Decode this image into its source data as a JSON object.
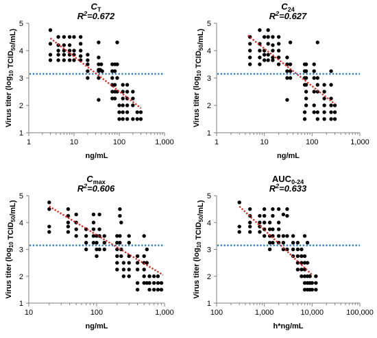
{
  "colors": {
    "point": "#000000",
    "fit": "#e8201c",
    "threshold": "#2b7fc1",
    "axis": "#7f7f7f"
  },
  "chart_data": [
    {
      "type": "scatter",
      "title_main": "C",
      "title_sub": "T",
      "title_sub_mode": "sub",
      "r2_label": "R",
      "r2_sup": "2",
      "r2_value": "=0.672",
      "xlabel": "ng/mL",
      "ylabel": "Virus titer (log10 TCID50/mL)",
      "x_scale": "log",
      "xlim": [
        1,
        1000
      ],
      "x_ticks": [
        1,
        10,
        100,
        1000
      ],
      "x_tick_labels": [
        "1",
        "10",
        "100",
        "1,000"
      ],
      "ylim": [
        1,
        5
      ],
      "y_ticks": [
        1,
        2,
        3,
        4,
        5
      ],
      "y_tick_labels": [
        "1",
        "2",
        "3",
        "4",
        "5"
      ],
      "threshold_y": 3.15,
      "fit_line": {
        "x": [
          3,
          300
        ],
        "y": [
          4.45,
          1.9
        ]
      },
      "points": [
        [
          3,
          4.75
        ],
        [
          3,
          4.25
        ],
        [
          3,
          3.85
        ],
        [
          3,
          3.65
        ],
        [
          4.5,
          4.5
        ],
        [
          4.5,
          4.2
        ],
        [
          4.5,
          4.0
        ],
        [
          4.5,
          3.85
        ],
        [
          4.5,
          3.65
        ],
        [
          6,
          4.5
        ],
        [
          6,
          4.2
        ],
        [
          6,
          4.0
        ],
        [
          6,
          3.85
        ],
        [
          6,
          3.65
        ],
        [
          8,
          4.5
        ],
        [
          8,
          4.2
        ],
        [
          8,
          4.0
        ],
        [
          8,
          3.85
        ],
        [
          8,
          3.65
        ],
        [
          10,
          4.5
        ],
        [
          10,
          4.0
        ],
        [
          10,
          3.85
        ],
        [
          10,
          3.65
        ],
        [
          14,
          4.5
        ],
        [
          14,
          4.25
        ],
        [
          14,
          4.0
        ],
        [
          14,
          3.8
        ],
        [
          14,
          3.65
        ],
        [
          20,
          3.85
        ],
        [
          20,
          3.65
        ],
        [
          20,
          3.5
        ],
        [
          20,
          3.25
        ],
        [
          20,
          3.0
        ],
        [
          35,
          4.3
        ],
        [
          35,
          3.75
        ],
        [
          35,
          3.5
        ],
        [
          35,
          3.3
        ],
        [
          35,
          3.25
        ],
        [
          35,
          3.0
        ],
        [
          35,
          2.2
        ],
        [
          38,
          3.3
        ],
        [
          40,
          3.5
        ],
        [
          42,
          3.25
        ],
        [
          70,
          3.5
        ],
        [
          70,
          3.25
        ],
        [
          70,
          3.0
        ],
        [
          70,
          2.75
        ],
        [
          70,
          2.5
        ],
        [
          70,
          2.25
        ],
        [
          80,
          3.5
        ],
        [
          80,
          3.25
        ],
        [
          80,
          2.75
        ],
        [
          80,
          2.5
        ],
        [
          80,
          2.25
        ],
        [
          90,
          4.3
        ],
        [
          90,
          3.5
        ],
        [
          90,
          3.0
        ],
        [
          90,
          2.5
        ],
        [
          100,
          2.0
        ],
        [
          100,
          1.75
        ],
        [
          100,
          1.5
        ],
        [
          120,
          2.75
        ],
        [
          120,
          2.5
        ],
        [
          120,
          2.25
        ],
        [
          120,
          2.0
        ],
        [
          120,
          1.75
        ],
        [
          120,
          1.5
        ],
        [
          150,
          2.75
        ],
        [
          150,
          2.5
        ],
        [
          150,
          2.25
        ],
        [
          150,
          2.0
        ],
        [
          150,
          1.75
        ],
        [
          150,
          1.5
        ],
        [
          200,
          2.5
        ],
        [
          200,
          2.25
        ],
        [
          200,
          2.0
        ],
        [
          200,
          1.5
        ],
        [
          250,
          1.75
        ],
        [
          250,
          1.5
        ],
        [
          300,
          1.75
        ],
        [
          300,
          1.5
        ]
      ]
    },
    {
      "type": "scatter",
      "title_main": "C",
      "title_sub": "24",
      "title_sub_mode": "sub",
      "r2_label": "R",
      "r2_sup": "2",
      "r2_value": "=0.627",
      "xlabel": "ng/mL",
      "ylabel": "Virus titer (log10 TCID50/mL)",
      "x_scale": "log",
      "xlim": [
        1,
        1000
      ],
      "x_ticks": [
        1,
        10,
        100,
        1000
      ],
      "x_tick_labels": [
        "1",
        "10",
        "100",
        "1,000"
      ],
      "ylim": [
        1,
        5
      ],
      "y_ticks": [
        1,
        2,
        3,
        4,
        5
      ],
      "y_tick_labels": [
        "1",
        "2",
        "3",
        "4",
        "5"
      ],
      "threshold_y": 3.15,
      "fit_line": {
        "x": [
          4.5,
          300
        ],
        "y": [
          4.55,
          2.05
        ]
      },
      "points": [
        [
          5,
          4.5
        ],
        [
          5,
          4.25
        ],
        [
          5,
          4.0
        ],
        [
          5,
          3.75
        ],
        [
          5,
          3.5
        ],
        [
          8,
          4.75
        ],
        [
          8,
          4.25
        ],
        [
          8,
          4.0
        ],
        [
          8,
          3.75
        ],
        [
          8,
          3.5
        ],
        [
          10,
          4.5
        ],
        [
          10,
          4.0
        ],
        [
          10,
          3.85
        ],
        [
          10,
          3.65
        ],
        [
          12,
          4.75
        ],
        [
          12,
          4.5
        ],
        [
          12,
          4.25
        ],
        [
          12,
          3.85
        ],
        [
          12,
          3.65
        ],
        [
          15,
          4.5
        ],
        [
          15,
          4.2
        ],
        [
          15,
          4.0
        ],
        [
          15,
          3.75
        ],
        [
          15,
          3.65
        ],
        [
          20,
          4.5
        ],
        [
          20,
          4.25
        ],
        [
          20,
          4.0
        ],
        [
          20,
          3.75
        ],
        [
          20,
          3.5
        ],
        [
          30,
          3.75
        ],
        [
          30,
          3.5
        ],
        [
          30,
          3.25
        ],
        [
          30,
          3.0
        ],
        [
          30,
          2.2
        ],
        [
          35,
          4.3
        ],
        [
          35,
          3.5
        ],
        [
          35,
          3.25
        ],
        [
          35,
          3.0
        ],
        [
          70,
          3.5
        ],
        [
          70,
          3.25
        ],
        [
          70,
          3.0
        ],
        [
          70,
          2.75
        ],
        [
          70,
          1.75
        ],
        [
          70,
          1.5
        ],
        [
          75,
          3.5
        ],
        [
          75,
          3.25
        ],
        [
          75,
          3.0
        ],
        [
          75,
          2.75
        ],
        [
          75,
          2.5
        ],
        [
          75,
          2.25
        ],
        [
          75,
          2.0
        ],
        [
          110,
          3.5
        ],
        [
          110,
          3.25
        ],
        [
          110,
          3.0
        ],
        [
          110,
          2.5
        ],
        [
          110,
          2.0
        ],
        [
          110,
          1.75
        ],
        [
          130,
          4.3
        ],
        [
          130,
          3.0
        ],
        [
          130,
          2.75
        ],
        [
          130,
          2.5
        ],
        [
          130,
          1.75
        ],
        [
          130,
          1.5
        ],
        [
          180,
          2.75
        ],
        [
          180,
          2.5
        ],
        [
          180,
          2.25
        ],
        [
          180,
          2.0
        ],
        [
          180,
          1.75
        ],
        [
          180,
          1.5
        ],
        [
          250,
          3.25
        ],
        [
          250,
          2.75
        ],
        [
          250,
          2.25
        ],
        [
          250,
          2.0
        ],
        [
          250,
          1.75
        ],
        [
          250,
          1.5
        ],
        [
          300,
          2.0
        ],
        [
          300,
          1.75
        ],
        [
          300,
          1.5
        ]
      ]
    },
    {
      "type": "scatter",
      "title_main": "C",
      "title_sub": "max",
      "title_sub_mode": "sub",
      "r2_label": "R",
      "r2_sup": "2",
      "r2_value": "=0.606",
      "xlabel": "ng/mL",
      "ylabel": "Virus titer (log10 TCID50/mL)",
      "x_scale": "log",
      "xlim": [
        10,
        1000
      ],
      "x_ticks": [
        10,
        100,
        1000
      ],
      "x_tick_labels": [
        "10",
        "100",
        "1,000"
      ],
      "ylim": [
        1,
        5
      ],
      "y_ticks": [
        1,
        2,
        3,
        4,
        5
      ],
      "y_tick_labels": [
        "1",
        "2",
        "3",
        "4",
        "5"
      ],
      "threshold_y": 3.15,
      "fit_line": {
        "x": [
          20,
          950
        ],
        "y": [
          4.6,
          2.05
        ]
      },
      "points": [
        [
          20,
          4.75
        ],
        [
          20,
          4.5
        ],
        [
          20,
          3.85
        ],
        [
          20,
          3.65
        ],
        [
          38,
          4.5
        ],
        [
          38,
          4.25
        ],
        [
          38,
          4.0
        ],
        [
          38,
          3.85
        ],
        [
          38,
          3.65
        ],
        [
          50,
          4.3
        ],
        [
          50,
          4.0
        ],
        [
          50,
          3.75
        ],
        [
          50,
          3.5
        ],
        [
          70,
          3.75
        ],
        [
          70,
          3.5
        ],
        [
          70,
          3.25
        ],
        [
          70,
          3.0
        ],
        [
          90,
          4.3
        ],
        [
          90,
          4.0
        ],
        [
          90,
          3.75
        ],
        [
          90,
          3.5
        ],
        [
          90,
          3.25
        ],
        [
          100,
          3.5
        ],
        [
          100,
          3.25
        ],
        [
          100,
          3.0
        ],
        [
          100,
          2.75
        ],
        [
          110,
          4.3
        ],
        [
          110,
          3.75
        ],
        [
          110,
          3.5
        ],
        [
          110,
          3.0
        ],
        [
          130,
          3.5
        ],
        [
          130,
          3.25
        ],
        [
          130,
          3.0
        ],
        [
          200,
          3.5
        ],
        [
          200,
          3.25
        ],
        [
          200,
          3.0
        ],
        [
          200,
          2.75
        ],
        [
          200,
          2.5
        ],
        [
          200,
          2.25
        ],
        [
          220,
          4.5
        ],
        [
          220,
          4.25
        ],
        [
          220,
          3.5
        ],
        [
          220,
          3.25
        ],
        [
          230,
          4.0
        ],
        [
          230,
          3.0
        ],
        [
          230,
          2.75
        ],
        [
          250,
          2.5
        ],
        [
          250,
          2.25
        ],
        [
          250,
          2.0
        ],
        [
          300,
          3.5
        ],
        [
          300,
          3.25
        ],
        [
          300,
          2.75
        ],
        [
          300,
          2.5
        ],
        [
          300,
          2.25
        ],
        [
          300,
          2.0
        ],
        [
          400,
          2.75
        ],
        [
          400,
          2.5
        ],
        [
          400,
          2.25
        ],
        [
          400,
          1.75
        ],
        [
          400,
          1.5
        ],
        [
          500,
          3.5
        ],
        [
          500,
          2.75
        ],
        [
          500,
          2.5
        ],
        [
          500,
          2.25
        ],
        [
          500,
          2.0
        ],
        [
          500,
          1.75
        ],
        [
          550,
          3.0
        ],
        [
          550,
          2.5
        ],
        [
          550,
          1.75
        ],
        [
          600,
          2.0
        ],
        [
          600,
          1.75
        ],
        [
          600,
          1.5
        ],
        [
          700,
          2.0
        ],
        [
          700,
          1.75
        ],
        [
          700,
          1.5
        ],
        [
          800,
          2.0
        ],
        [
          800,
          1.75
        ],
        [
          800,
          1.5
        ],
        [
          900,
          1.75
        ],
        [
          900,
          1.5
        ]
      ]
    },
    {
      "type": "scatter",
      "title_main": "AUC",
      "title_sub": "0-24",
      "title_sub_mode": "sub",
      "r2_label": "R",
      "r2_sup": "2",
      "r2_value": "=0.633",
      "xlabel": "h*ng/mL",
      "ylabel": "Virus titer (log10 TCID50/mL)",
      "x_scale": "log",
      "xlim": [
        100,
        100000
      ],
      "x_ticks": [
        100,
        1000,
        10000,
        100000
      ],
      "x_tick_labels": [
        "100",
        "1,000",
        "10,000",
        "100,000"
      ],
      "ylim": [
        1,
        5
      ],
      "y_ticks": [
        1,
        2,
        3,
        4,
        5
      ],
      "y_tick_labels": [
        "1",
        "2",
        "3",
        "4",
        "5"
      ],
      "threshold_y": 3.15,
      "fit_line": {
        "x": [
          300,
          10000
        ],
        "y": [
          4.6,
          2.05
        ]
      },
      "points": [
        [
          300,
          4.75
        ],
        [
          300,
          3.85
        ],
        [
          300,
          3.65
        ],
        [
          500,
          4.5
        ],
        [
          500,
          4.25
        ],
        [
          500,
          4.0
        ],
        [
          500,
          3.85
        ],
        [
          500,
          3.65
        ],
        [
          800,
          4.25
        ],
        [
          800,
          4.0
        ],
        [
          800,
          3.85
        ],
        [
          800,
          3.65
        ],
        [
          1000,
          4.5
        ],
        [
          1000,
          4.25
        ],
        [
          1000,
          4.0
        ],
        [
          1000,
          3.75
        ],
        [
          1000,
          3.5
        ],
        [
          1300,
          4.0
        ],
        [
          1300,
          3.75
        ],
        [
          1300,
          3.5
        ],
        [
          1300,
          3.25
        ],
        [
          1300,
          3.0
        ],
        [
          1500,
          4.5
        ],
        [
          1500,
          4.25
        ],
        [
          1500,
          3.75
        ],
        [
          1500,
          3.5
        ],
        [
          1500,
          3.25
        ],
        [
          2000,
          4.5
        ],
        [
          2000,
          4.0
        ],
        [
          2000,
          3.75
        ],
        [
          2000,
          3.5
        ],
        [
          2000,
          3.25
        ],
        [
          2500,
          4.3
        ],
        [
          2500,
          3.5
        ],
        [
          2500,
          3.25
        ],
        [
          2500,
          3.0
        ],
        [
          3000,
          4.5
        ],
        [
          3000,
          4.25
        ],
        [
          3000,
          3.5
        ],
        [
          3000,
          3.0
        ],
        [
          4000,
          3.5
        ],
        [
          4000,
          3.25
        ],
        [
          4000,
          3.0
        ],
        [
          4000,
          2.75
        ],
        [
          5000,
          3.25
        ],
        [
          5000,
          3.0
        ],
        [
          5000,
          2.75
        ],
        [
          5000,
          2.5
        ],
        [
          5000,
          2.25
        ],
        [
          6000,
          3.0
        ],
        [
          6000,
          2.75
        ],
        [
          6000,
          2.5
        ],
        [
          6000,
          2.25
        ],
        [
          6000,
          2.0
        ],
        [
          7000,
          3.5
        ],
        [
          7000,
          2.75
        ],
        [
          7000,
          2.5
        ],
        [
          7000,
          2.25
        ],
        [
          7000,
          2.0
        ],
        [
          7000,
          1.75
        ],
        [
          7000,
          1.5
        ],
        [
          8000,
          3.25
        ],
        [
          8000,
          2.5
        ],
        [
          8000,
          2.0
        ],
        [
          8000,
          1.75
        ],
        [
          8000,
          1.5
        ],
        [
          9000,
          2.0
        ],
        [
          9000,
          1.75
        ],
        [
          9000,
          1.5
        ],
        [
          10000,
          1.75
        ],
        [
          10000,
          1.5
        ],
        [
          12000,
          2.0
        ],
        [
          12000,
          1.75
        ],
        [
          12000,
          1.5
        ]
      ]
    }
  ]
}
